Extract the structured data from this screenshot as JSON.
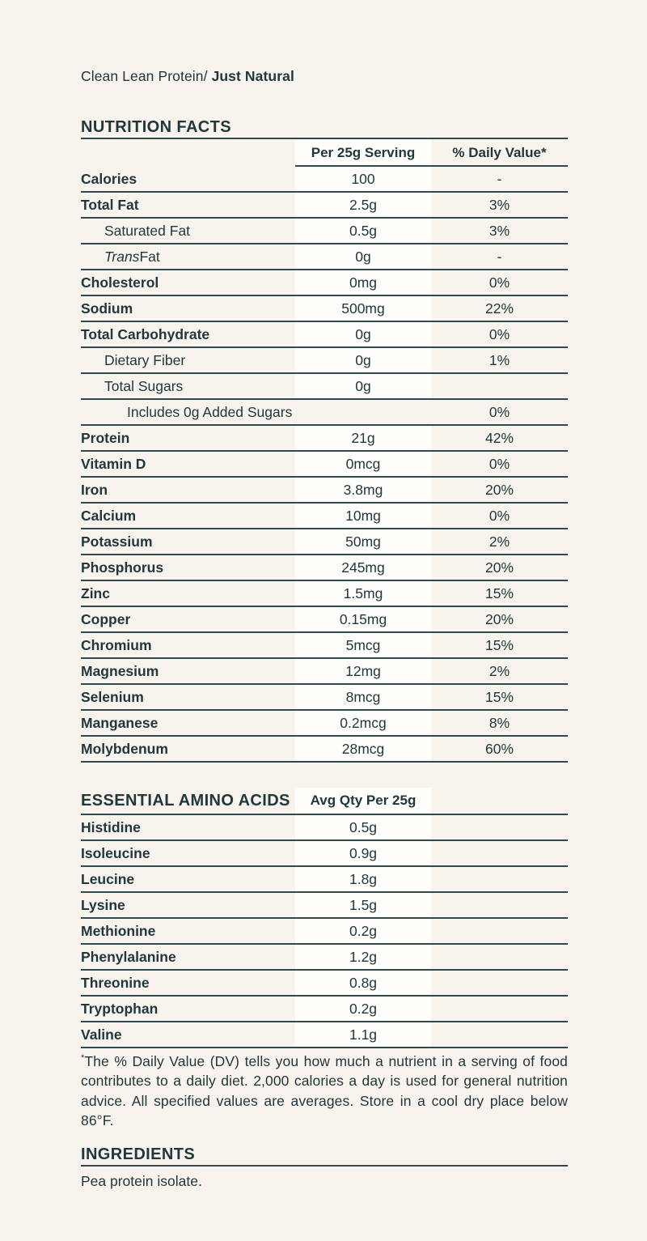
{
  "colors": {
    "background": "#f8f3ec",
    "text": "#20383d",
    "line": "#31494e",
    "highlight_band": "#fffefa"
  },
  "product": {
    "name_regular": "Clean Lean Protein/ ",
    "name_bold": "Just Natural"
  },
  "nutrition": {
    "title": "NUTRITION FACTS",
    "col_serving": "Per 25g Serving",
    "col_dv": "% Daily Value*",
    "rows": [
      {
        "label": "Calories",
        "value": "100",
        "dv": "-",
        "bold": true,
        "indent": 0
      },
      {
        "label": "Total Fat",
        "value": "2.5g",
        "dv": "3%",
        "bold": true,
        "indent": 0
      },
      {
        "label": "Saturated Fat",
        "value": "0.5g",
        "dv": "3%",
        "bold": false,
        "indent": 1
      },
      {
        "label_italic": "Trans",
        "label_rest": " Fat",
        "value": "0g",
        "dv": "-",
        "bold": false,
        "indent": 1
      },
      {
        "label": "Cholesterol",
        "value": "0mg",
        "dv": "0%",
        "bold": true,
        "indent": 0
      },
      {
        "label": "Sodium",
        "value": "500mg",
        "dv": "22%",
        "bold": true,
        "indent": 0
      },
      {
        "label": "Total Carbohydrate",
        "value": "0g",
        "dv": "0%",
        "bold": true,
        "indent": 0
      },
      {
        "label": "Dietary Fiber",
        "value": "0g",
        "dv": "1%",
        "bold": false,
        "indent": 1
      },
      {
        "label": "Total Sugars",
        "value": "0g",
        "dv": "",
        "bold": false,
        "indent": 1
      },
      {
        "label": "Includes 0g Added Sugars",
        "value": "",
        "dv": "0%",
        "bold": false,
        "indent": 2,
        "span_label": true
      },
      {
        "label": "Protein",
        "value": "21g",
        "dv": "42%",
        "bold": true,
        "indent": 0
      },
      {
        "label": "Vitamin D",
        "value": "0mcg",
        "dv": "0%",
        "bold": true,
        "indent": 0
      },
      {
        "label": "Iron",
        "value": "3.8mg",
        "dv": "20%",
        "bold": true,
        "indent": 0
      },
      {
        "label": "Calcium",
        "value": "10mg",
        "dv": "0%",
        "bold": true,
        "indent": 0
      },
      {
        "label": "Potassium",
        "value": "50mg",
        "dv": "2%",
        "bold": true,
        "indent": 0
      },
      {
        "label": "Phosphorus",
        "value": "245mg",
        "dv": "20%",
        "bold": true,
        "indent": 0
      },
      {
        "label": "Zinc",
        "value": "1.5mg",
        "dv": "15%",
        "bold": true,
        "indent": 0
      },
      {
        "label": "Copper",
        "value": "0.15mg",
        "dv": "20%",
        "bold": true,
        "indent": 0
      },
      {
        "label": "Chromium",
        "value": "5mcg",
        "dv": "15%",
        "bold": true,
        "indent": 0
      },
      {
        "label": "Magnesium",
        "value": "12mg",
        "dv": "2%",
        "bold": true,
        "indent": 0
      },
      {
        "label": "Selenium",
        "value": "8mcg",
        "dv": "15%",
        "bold": true,
        "indent": 0
      },
      {
        "label": "Manganese",
        "value": "0.2mcg",
        "dv": "8%",
        "bold": true,
        "indent": 0
      },
      {
        "label": "Molybdenum",
        "value": "28mcg",
        "dv": "60%",
        "bold": true,
        "indent": 0
      }
    ]
  },
  "amino": {
    "title": "ESSENTIAL AMINO ACIDS",
    "col_qty": "Avg Qty Per 25g",
    "rows": [
      {
        "label": "Histidine",
        "value": "0.5g"
      },
      {
        "label": "Isoleucine",
        "value": "0.9g"
      },
      {
        "label": "Leucine",
        "value": "1.8g"
      },
      {
        "label": "Lysine",
        "value": "1.5g"
      },
      {
        "label": "Methionine",
        "value": "0.2g"
      },
      {
        "label": "Phenylalanine",
        "value": "1.2g"
      },
      {
        "label": "Threonine",
        "value": "0.8g"
      },
      {
        "label": "Tryptophan",
        "value": "0.2g"
      },
      {
        "label": "Valine",
        "value": "1.1g"
      }
    ]
  },
  "footnote": {
    "symbol": "*",
    "text": "The % Daily Value (DV) tells you how much a nutrient in a serving of food contributes to a daily diet. 2,000 calories a day is used for general nutrition advice. All specified values are averages. Store in a cool dry place below 86°F."
  },
  "ingredients": {
    "title": "INGREDIENTS",
    "text": "Pea protein isolate."
  }
}
